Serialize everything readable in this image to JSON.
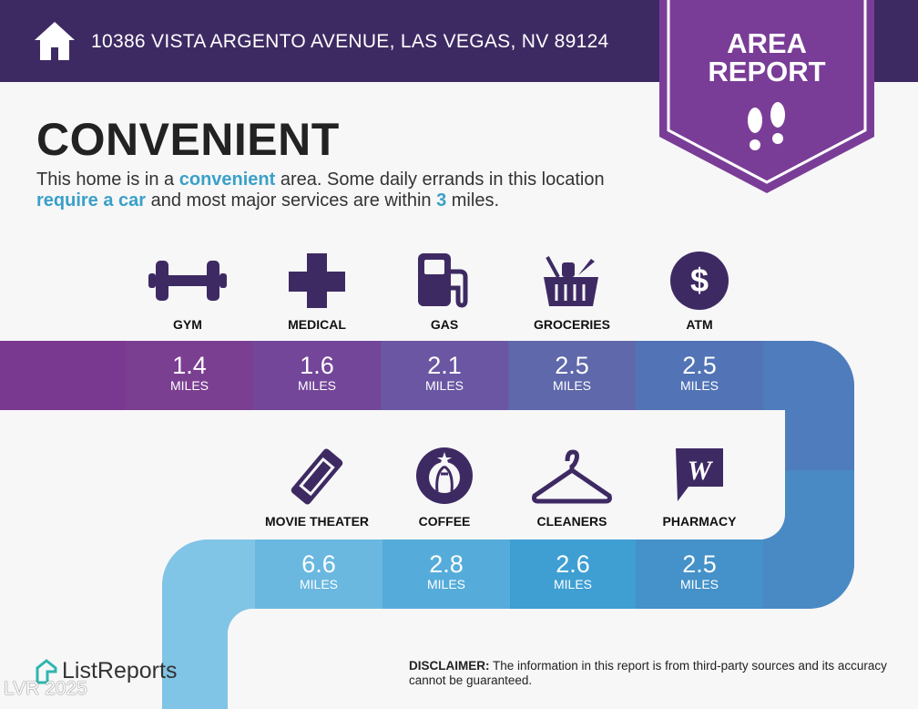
{
  "header": {
    "address": "10386 VISTA ARGENTO AVENUE, LAS VEGAS, NV 89124",
    "badge_line1": "AREA",
    "badge_line2": "REPORT"
  },
  "headline": "CONVENIENT",
  "description": {
    "p1": "This home is in a ",
    "k1": "convenient",
    "p2": " area. Some daily errands in this location ",
    "k2": "require a car",
    "p3": " and most major services are within ",
    "k3": "3",
    "p4": " miles."
  },
  "unit": "MILES",
  "row1": [
    {
      "label": "GYM",
      "value": "1.4",
      "icon": "dumbbell-icon"
    },
    {
      "label": "MEDICAL",
      "value": "1.6",
      "icon": "medical-cross-icon"
    },
    {
      "label": "GAS",
      "value": "2.1",
      "icon": "gas-pump-icon"
    },
    {
      "label": "GROCERIES",
      "value": "2.5",
      "icon": "grocery-basket-icon"
    },
    {
      "label": "ATM",
      "value": "2.5",
      "icon": "dollar-icon"
    }
  ],
  "row2": [
    {
      "label": "MOVIE THEATER",
      "value": "6.6",
      "icon": "ticket-icon"
    },
    {
      "label": "COFFEE",
      "value": "2.8",
      "icon": "starbucks-logo-icon"
    },
    {
      "label": "CLEANERS",
      "value": "2.6",
      "icon": "hanger-icon"
    },
    {
      "label": "PHARMACY",
      "value": "2.5",
      "icon": "walgreens-logo-icon"
    }
  ],
  "footer": {
    "logo": "ListReports",
    "disclaimer_label": "DISCLAIMER:",
    "disclaimer": " The information in this report is from third-party sources and its accuracy cannot be guaranteed.",
    "watermark": "LVR 2025"
  },
  "colors": {
    "header": "#3e2a63",
    "badge": "#7a3d97",
    "accent": "#3aa0c8",
    "icon": "#3e2a63"
  }
}
